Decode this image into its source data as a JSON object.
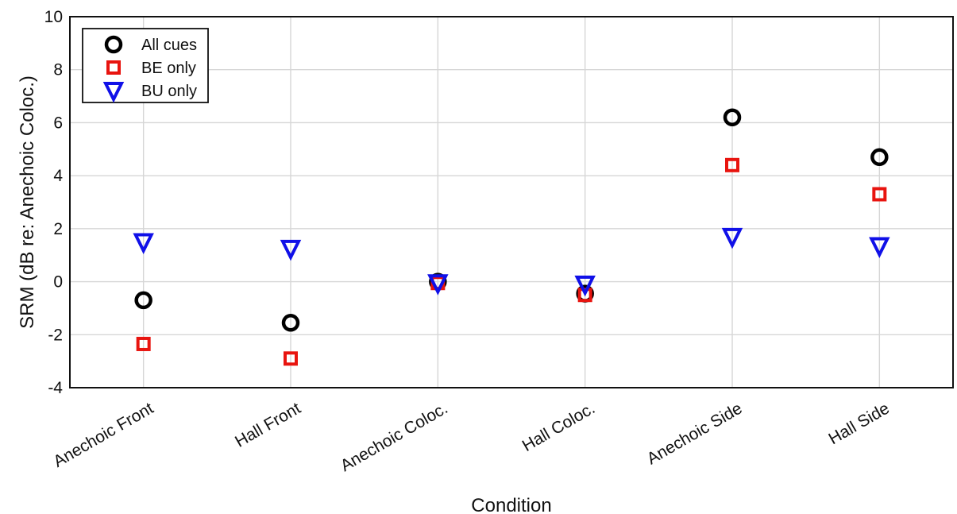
{
  "chart_data": {
    "type": "scatter",
    "title": "",
    "xlabel": "Condition",
    "ylabel": "SRM (dB re: Anechoic Coloc.)",
    "categories": [
      "Anechoic Front",
      "Hall Front",
      "Anechoic Coloc.",
      "Hall Coloc.",
      "Anechoic Side",
      "Hall Side"
    ],
    "ylim": [
      -4,
      10
    ],
    "yticks": [
      -4,
      -2,
      0,
      2,
      4,
      6,
      8,
      10
    ],
    "yticklabels": [
      "-4",
      "-2",
      "0",
      "2",
      "4",
      "6",
      "8",
      "10"
    ],
    "grid": true,
    "legend_position": "top-left",
    "series": [
      {
        "name": "All cues",
        "marker": "circle",
        "color": "#000000",
        "values": [
          -0.7,
          -1.55,
          0.0,
          -0.45,
          6.2,
          4.7
        ]
      },
      {
        "name": "BE only",
        "marker": "square",
        "color": "#e8140f",
        "values": [
          -2.35,
          -2.9,
          -0.05,
          -0.5,
          4.4,
          3.3
        ]
      },
      {
        "name": "BU only",
        "marker": "triangle-down",
        "color": "#1010e8",
        "values": [
          1.5,
          1.25,
          -0.05,
          -0.1,
          1.7,
          1.35
        ]
      }
    ]
  }
}
